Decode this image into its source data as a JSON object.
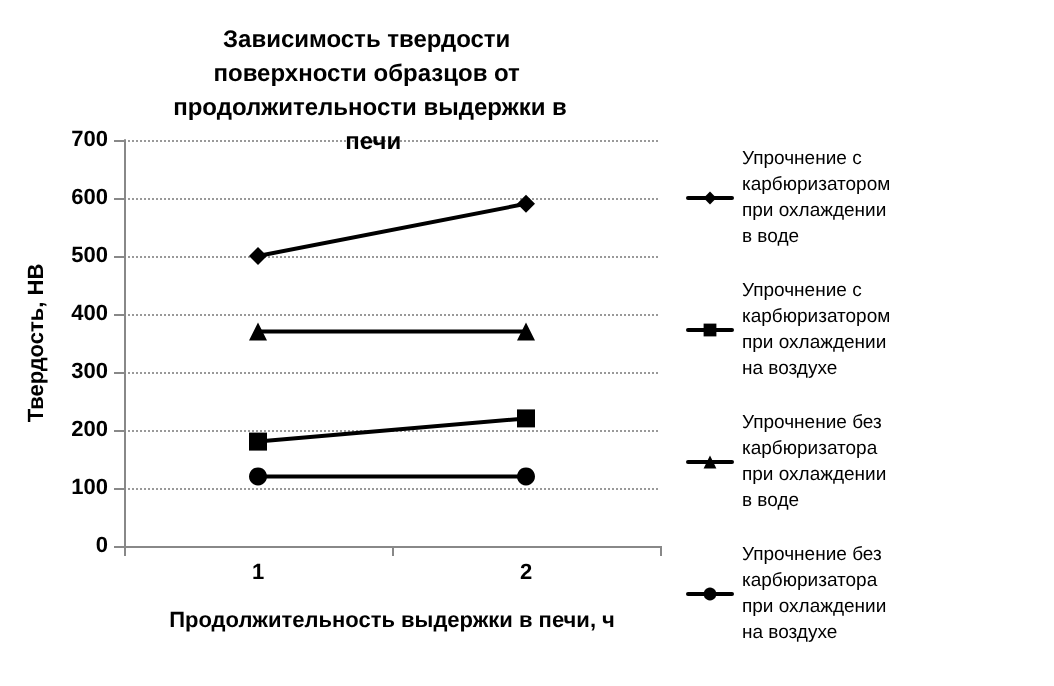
{
  "chart_data": {
    "type": "line",
    "title": "Зависимость твердости поверхности образцов от продолжительности выдержки в печи",
    "xlabel": "Продолжительность выдержки в печи, ч",
    "ylabel": "Твердость, НВ",
    "categories": [
      "1",
      "2"
    ],
    "series": [
      {
        "name": "Упрочнение с карбюризатором при охлаждении в воде",
        "color": "#000000",
        "marker": "diamond",
        "values": [
          500,
          590
        ]
      },
      {
        "name": "Упрочнение с карбюризатором при охлаждении на воздухе",
        "color": "#000000",
        "marker": "square",
        "values": [
          180,
          220
        ]
      },
      {
        "name": "Упрочнение без карбюризатора при охлаждении в воде",
        "color": "#000000",
        "marker": "triangle",
        "values": [
          370,
          370
        ]
      },
      {
        "name": "Упрочнение без карбюризатора при охлаждении на воздухе",
        "color": "#000000",
        "marker": "circle",
        "values": [
          120,
          120
        ]
      }
    ],
    "ylim": [
      0,
      700
    ],
    "yticks": [
      0,
      100,
      200,
      300,
      400,
      500,
      600,
      700
    ],
    "grid": "y",
    "legend": "right",
    "line_style": "solid"
  }
}
